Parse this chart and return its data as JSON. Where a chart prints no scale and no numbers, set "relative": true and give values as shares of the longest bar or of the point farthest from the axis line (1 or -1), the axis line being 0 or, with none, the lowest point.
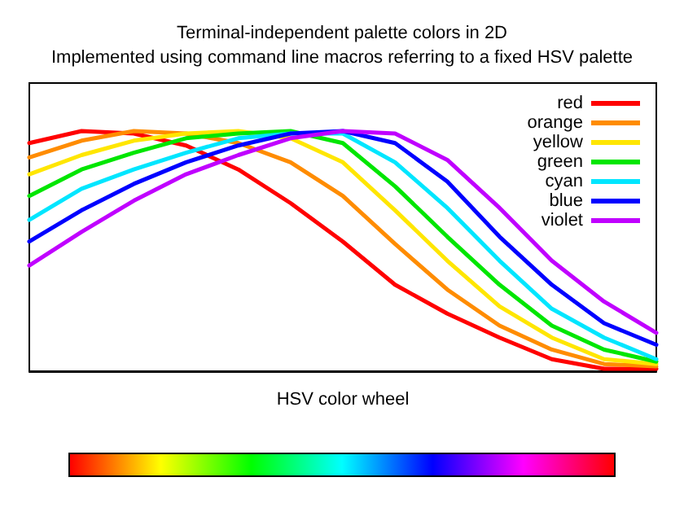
{
  "chart_data": {
    "type": "line",
    "title": "Terminal-independent palette colors in 2D",
    "subtitle": "Implemented using command line macros referring to a fixed HSV palette",
    "xlabel": "HSV color wheel",
    "relative": true,
    "legend": "top right",
    "grid": false,
    "marker": "none",
    "line_style": "solid",
    "categories": [
      null,
      null,
      null,
      null,
      null,
      null,
      null,
      null,
      null,
      null,
      null,
      null,
      null
    ],
    "series": [
      {
        "name": "red",
        "color": "#ff0000",
        "values": [
          0.95,
          1,
          0.99,
          0.94,
          0.84,
          0.7,
          0.54,
          0.36,
          0.24,
          0.14,
          0.05,
          0.01,
          0.01
        ]
      },
      {
        "name": "orange",
        "color": "#ff8c00",
        "values": [
          0.89,
          0.96,
          1,
          0.99,
          0.95,
          0.87,
          0.73,
          0.53,
          0.34,
          0.19,
          0.09,
          0.03,
          0.02
        ]
      },
      {
        "name": "yellow",
        "color": "#ffe600",
        "values": [
          0.82,
          0.9,
          0.96,
          0.99,
          1,
          0.97,
          0.87,
          0.67,
          0.46,
          0.27,
          0.14,
          0.05,
          0.03
        ]
      },
      {
        "name": "green",
        "color": "#00e600",
        "values": [
          0.73,
          0.84,
          0.91,
          0.97,
          0.99,
          1,
          0.95,
          0.77,
          0.56,
          0.36,
          0.19,
          0.09,
          0.04
        ]
      },
      {
        "name": "cyan",
        "color": "#00e6ff",
        "values": [
          0.63,
          0.76,
          0.84,
          0.91,
          0.97,
          0.99,
          0.99,
          0.87,
          0.68,
          0.46,
          0.26,
          0.14,
          0.05
        ]
      },
      {
        "name": "blue",
        "color": "#0000ff",
        "values": [
          0.54,
          0.67,
          0.78,
          0.87,
          0.94,
          0.99,
          1,
          0.95,
          0.79,
          0.56,
          0.36,
          0.2,
          0.11
        ]
      },
      {
        "name": "violet",
        "color": "#c000ff",
        "values": [
          0.44,
          0.58,
          0.71,
          0.82,
          0.9,
          0.97,
          1,
          0.99,
          0.88,
          0.68,
          0.46,
          0.29,
          0.16
        ]
      }
    ]
  }
}
